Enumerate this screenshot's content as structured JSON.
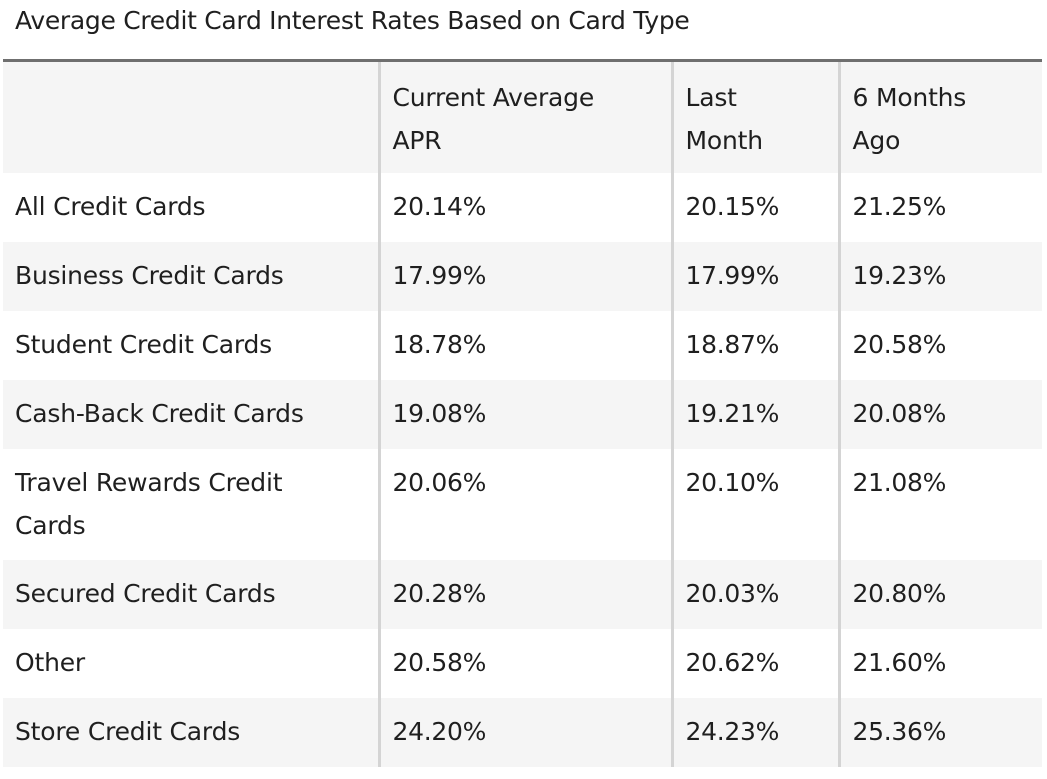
{
  "title": "Average Credit Card Interest Rates Based on Card Type",
  "table": {
    "headers": [
      "",
      "Current Average APR",
      "Last Month",
      "6 Months Ago"
    ],
    "header_lines": [
      [
        ""
      ],
      [
        "Current Average",
        "APR"
      ],
      [
        "Last",
        "Month"
      ],
      [
        "6 Months",
        "Ago"
      ]
    ],
    "rows": [
      {
        "label": "All Credit Cards",
        "label_lines": [
          "All Credit Cards"
        ],
        "current": "20.14%",
        "last_month": "20.15%",
        "six_months": "21.25%"
      },
      {
        "label": "Business Credit Cards",
        "label_lines": [
          "Business Credit Cards"
        ],
        "current": "17.99%",
        "last_month": "17.99%",
        "six_months": "19.23%"
      },
      {
        "label": "Student Credit Cards",
        "label_lines": [
          "Student Credit Cards"
        ],
        "current": "18.78%",
        "last_month": "18.87%",
        "six_months": "20.58%"
      },
      {
        "label": "Cash-Back Credit Cards",
        "label_lines": [
          "Cash-Back Credit Cards"
        ],
        "current": "19.08%",
        "last_month": "19.21%",
        "six_months": "20.08%"
      },
      {
        "label": "Travel Rewards Credit Cards",
        "label_lines": [
          "Travel Rewards Credit",
          "Cards"
        ],
        "current": "20.06%",
        "last_month": "20.10%",
        "six_months": "21.08%"
      },
      {
        "label": "Secured Credit Cards",
        "label_lines": [
          "Secured Credit Cards"
        ],
        "current": "20.28%",
        "last_month": "20.03%",
        "six_months": "20.80%"
      },
      {
        "label": "Other",
        "label_lines": [
          "Other"
        ],
        "current": "20.58%",
        "last_month": "20.62%",
        "six_months": "21.60%"
      },
      {
        "label": "Store Credit Cards",
        "label_lines": [
          "Store Credit Cards"
        ],
        "current": "24.20%",
        "last_month": "24.23%",
        "six_months": "25.36%"
      }
    ]
  }
}
